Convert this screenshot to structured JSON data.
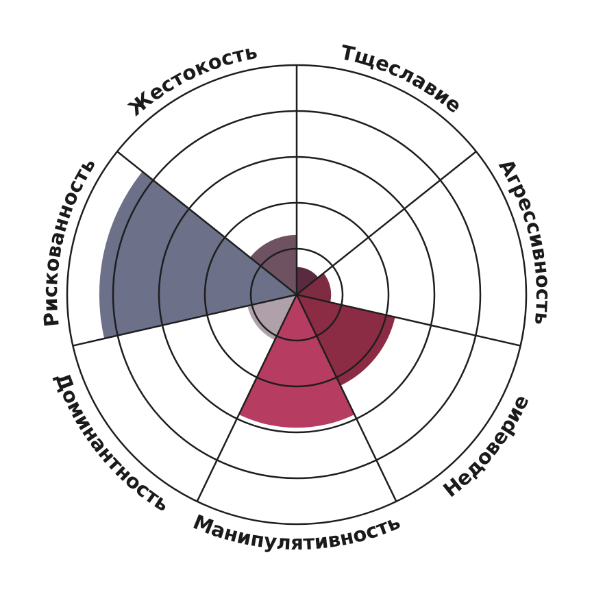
{
  "chart_data": {
    "type": "polar-area",
    "categories": [
      "Тщеславие",
      "Агрессивность",
      "Недоверие",
      "Манипулятивность",
      "Доминантность",
      "Рискованность",
      "Жестокость"
    ],
    "values": [
      0.6,
      0.75,
      2.2,
      2.9,
      1.1,
      4.3,
      1.3
    ],
    "colors": [
      "#5a2a40",
      "#7e2c42",
      "#8c2c44",
      "#b73c62",
      "#b0a0aa",
      "#6c7088",
      "#6e5262"
    ],
    "rlim": [
      0,
      5
    ],
    "rticks": [
      1,
      2,
      3,
      4,
      5
    ]
  }
}
